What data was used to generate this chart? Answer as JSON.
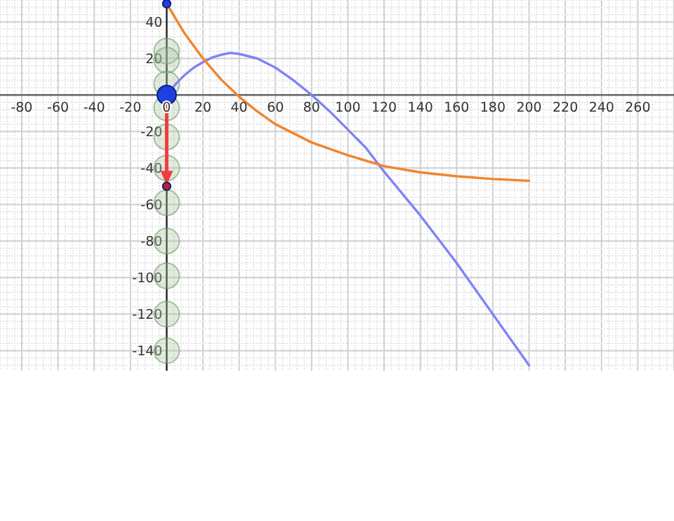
{
  "chart_data": {
    "type": "line",
    "xlim": [
      -92,
      280
    ],
    "ylim": [
      -151,
      52
    ],
    "xticks": [
      -80,
      -60,
      -40,
      -20,
      0,
      20,
      40,
      60,
      80,
      100,
      120,
      140,
      160,
      180,
      200,
      220,
      240,
      260
    ],
    "yticks": [
      40,
      20,
      -20,
      -40,
      -60,
      -80,
      -100,
      -120,
      -140
    ],
    "grid": true,
    "marker": "none",
    "line_style": "solid",
    "series": [
      {
        "color": "#7f84f5",
        "x": [
          0,
          5,
          10,
          15,
          20,
          25,
          30,
          35,
          40,
          50,
          60,
          70,
          80,
          90,
          100,
          110,
          120,
          140,
          160,
          180,
          200
        ],
        "values": [
          0,
          6,
          11,
          15,
          18,
          20.5,
          22,
          23,
          22.5,
          20,
          15,
          8,
          0,
          -9,
          -19,
          -29,
          -42,
          -66,
          -92,
          -120,
          -148
        ]
      },
      {
        "color": "#f0852d",
        "x": [
          0,
          10,
          20,
          30,
          40,
          50,
          60,
          80,
          100,
          120,
          140,
          160,
          180,
          200
        ],
        "values": [
          50,
          33.5,
          20,
          8.5,
          -1,
          -9,
          -16,
          -26,
          -33,
          -39,
          -42.4,
          -44.5,
          -46,
          -47
        ]
      },
      {
        "type": "bubble",
        "marker": "circle",
        "color": "#a9c9a4",
        "x": [
          0,
          0,
          0,
          0,
          0,
          0,
          0,
          0,
          0,
          0,
          0
        ],
        "values": [
          24,
          19,
          6,
          -7,
          -23,
          -40,
          -59,
          -80,
          -99,
          -120,
          -140
        ],
        "sizes": [
          1,
          1,
          1,
          1,
          1,
          1,
          1,
          1,
          1,
          1,
          1
        ]
      },
      {
        "type": "bubble",
        "marker": "circle",
        "x": [
          0,
          0,
          0
        ],
        "values": [
          0,
          50,
          -50
        ],
        "sizes": [
          0.56,
          0.1,
          0.1
        ],
        "colors": [
          "#1f3fe0",
          "#1f3fe0",
          "#c02020"
        ]
      }
    ]
  }
}
